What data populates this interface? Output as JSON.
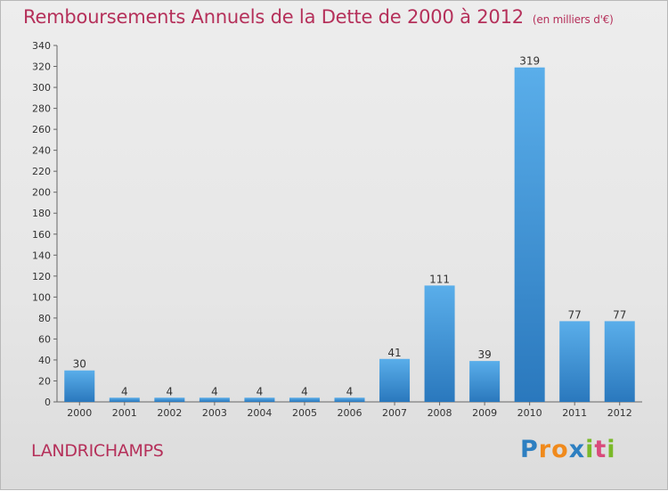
{
  "chart_data": {
    "type": "bar",
    "title": "Remboursements Annuels de la Dette de 2000 à 2012",
    "unit": "(en milliers d'€)",
    "categories": [
      "2000",
      "2001",
      "2002",
      "2003",
      "2004",
      "2005",
      "2006",
      "2007",
      "2008",
      "2009",
      "2010",
      "2011",
      "2012"
    ],
    "values": [
      30,
      4,
      4,
      4,
      4,
      4,
      4,
      41,
      111,
      39,
      319,
      77,
      77
    ],
    "ylim": [
      0,
      340
    ],
    "yticks": [
      0,
      20,
      40,
      60,
      80,
      100,
      120,
      140,
      160,
      180,
      200,
      220,
      240,
      260,
      280,
      300,
      320,
      340
    ],
    "xlabel": "",
    "ylabel": "",
    "grid": false,
    "bar_color": "#3d8fd3"
  },
  "commune": "LANDRICHAMPS",
  "logo": {
    "text": "Proxiti",
    "letters": [
      "P",
      "r",
      "o",
      "x",
      "i",
      "t",
      "i"
    ],
    "colors": [
      "#2d7fc1",
      "#f08a1c",
      "#f08a1c",
      "#2d7fc1",
      "#7ab929",
      "#d94a7b",
      "#7ab929"
    ]
  }
}
